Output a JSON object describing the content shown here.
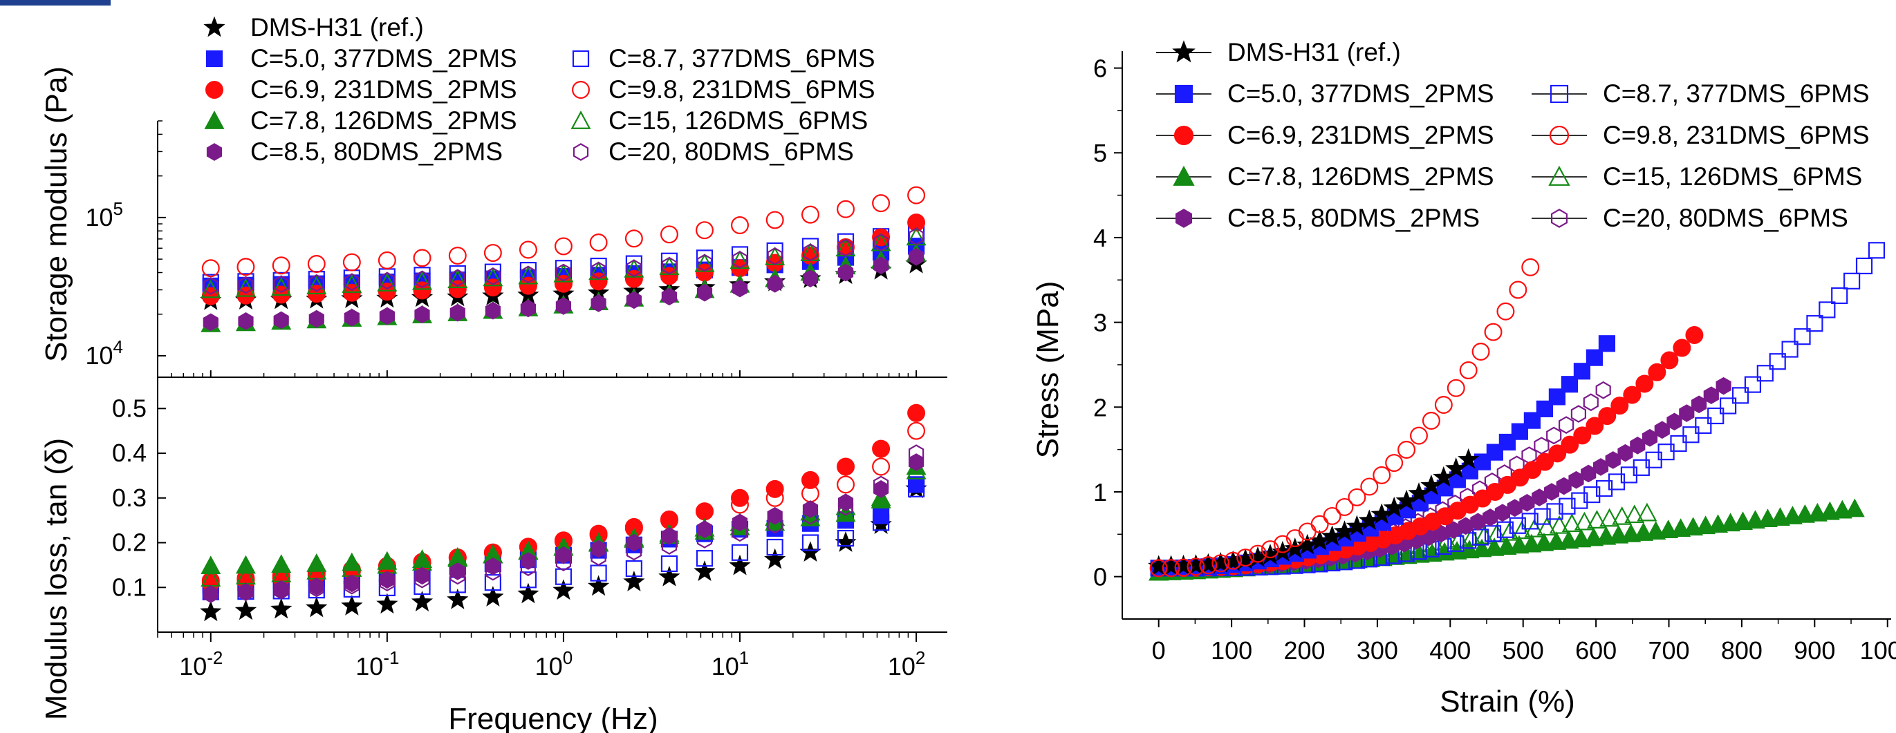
{
  "colors": {
    "black": "#000000",
    "blue": "#1a1aff",
    "red": "#ff0d0d",
    "green": "#138a13",
    "purple": "#7b1a8a",
    "header_accent": "#1f3f8f"
  },
  "chart_data": [
    {
      "type": "scatter",
      "title": "",
      "panel": "storage-modulus",
      "xlabel": "Frequency (Hz)",
      "ylabel": "Storage modulus (Pa)",
      "x_scale": "log",
      "y_scale": "log",
      "xlim": [
        0.005,
        150
      ],
      "ylim": [
        7000,
        500000
      ],
      "y_ticks": [
        {
          "value": 10000,
          "base": "10",
          "exp": "4"
        },
        {
          "value": 100000,
          "base": "10",
          "exp": "5"
        }
      ],
      "legend_position": "top",
      "legend_layout": [
        [
          "DMS-H31"
        ],
        [
          "C5.0",
          "C8.7"
        ],
        [
          "C6.9",
          "C9.8"
        ],
        [
          "C7.8",
          "C15"
        ],
        [
          "C8.5",
          "C20"
        ]
      ],
      "x": [
        0.01,
        0.0158,
        0.0251,
        0.0398,
        0.0631,
        0.1,
        0.158,
        0.251,
        0.398,
        0.631,
        1,
        1.58,
        2.51,
        3.98,
        6.31,
        10,
        15.8,
        25.1,
        39.8,
        63.1,
        100
      ],
      "series": [
        {
          "key": "DMS-H31",
          "name": "DMS-H31 (ref.)",
          "color": "black",
          "marker": "star",
          "fill": true,
          "values": [
            25000,
            25200,
            25400,
            25600,
            25800,
            26000,
            26300,
            26600,
            27000,
            27400,
            27900,
            28400,
            29200,
            30000,
            31000,
            32500,
            34200,
            36000,
            38500,
            41500,
            46000
          ]
        },
        {
          "key": "C5.0",
          "name": "C=5.0, 377DMS_2PMS",
          "color": "blue",
          "marker": "square",
          "fill": true,
          "values": [
            32000,
            32400,
            32800,
            33200,
            33700,
            34200,
            34800,
            35400,
            36000,
            36700,
            37500,
            38300,
            39300,
            40500,
            41800,
            43500,
            45500,
            48000,
            51500,
            56000,
            62000
          ]
        },
        {
          "key": "C8.7",
          "name": "C=8.7, 377DMS_6PMS",
          "color": "blue",
          "marker": "square",
          "fill": false,
          "values": [
            34000,
            34500,
            35100,
            35800,
            36600,
            37400,
            38300,
            39300,
            40400,
            41600,
            43000,
            44600,
            46400,
            48500,
            51000,
            54000,
            57500,
            62000,
            67000,
            73000,
            80000
          ]
        },
        {
          "key": "C6.9",
          "name": "C=6.9, 231DMS_2PMS",
          "color": "red",
          "marker": "circle",
          "fill": true,
          "values": [
            27000,
            27300,
            27700,
            28100,
            28600,
            29100,
            29700,
            30400,
            31200,
            32100,
            33200,
            34500,
            36000,
            37800,
            40000,
            43000,
            47000,
            53000,
            61000,
            72000,
            92000
          ]
        },
        {
          "key": "C9.8",
          "name": "C=9.8, 231DMS_6PMS",
          "color": "red",
          "marker": "circle",
          "fill": false,
          "values": [
            43000,
            44000,
            45000,
            46200,
            47500,
            49000,
            51000,
            53000,
            55500,
            58500,
            62000,
            66000,
            70500,
            75500,
            81000,
            88000,
            96000,
            105000,
            115000,
            127000,
            145000
          ]
        },
        {
          "key": "C7.8",
          "name": "C=7.8, 126DMS_2PMS",
          "color": "green",
          "marker": "triangle",
          "fill": true,
          "values": [
            17000,
            17300,
            17700,
            18100,
            18600,
            19100,
            19700,
            20400,
            21200,
            22100,
            23200,
            24500,
            26000,
            27800,
            30000,
            32800,
            36000,
            40000,
            44500,
            49000,
            55000
          ]
        },
        {
          "key": "C15",
          "name": "C=15, 126DMS_6PMS",
          "color": "green",
          "marker": "triangle",
          "fill": false,
          "values": [
            30000,
            30600,
            31200,
            31900,
            32700,
            33500,
            34400,
            35400,
            36500,
            37700,
            39000,
            40500,
            42200,
            44100,
            46300,
            48800,
            51800,
            55500,
            60000,
            65500,
            72000
          ]
        },
        {
          "key": "C8.5",
          "name": "C=8.5, 80DMS_2PMS",
          "color": "purple",
          "marker": "hexagon",
          "fill": true,
          "values": [
            17500,
            17800,
            18100,
            18500,
            18900,
            19400,
            19900,
            20500,
            21200,
            22000,
            22900,
            24000,
            25300,
            26800,
            28600,
            30700,
            33200,
            36200,
            40000,
            45000,
            52000
          ]
        },
        {
          "key": "C20",
          "name": "C=20, 80DMS_6PMS",
          "color": "purple",
          "marker": "hexagon",
          "fill": false,
          "values": [
            32000,
            32500,
            33000,
            33600,
            34200,
            34900,
            35700,
            36600,
            37600,
            38700,
            40000,
            41400,
            43000,
            44800,
            47000,
            49500,
            52500,
            56000,
            60500,
            66000,
            73000
          ]
        }
      ]
    },
    {
      "type": "scatter",
      "title": "",
      "panel": "loss-modulus",
      "xlabel": "Frequency (Hz)",
      "ylabel": "Modulus loss, tan (δ)",
      "x_scale": "log",
      "y_scale": "linear",
      "xlim": [
        0.005,
        150
      ],
      "ylim": [
        0,
        0.57
      ],
      "y_ticks": [
        "0.1",
        "0.2",
        "0.3",
        "0.4",
        "0.5"
      ],
      "x_ticks": [
        {
          "value": 0.01,
          "base": "10",
          "exp": "-2"
        },
        {
          "value": 0.1,
          "base": "10",
          "exp": "-1"
        },
        {
          "value": 1,
          "base": "10",
          "exp": "0"
        },
        {
          "value": 10,
          "base": "10",
          "exp": "1"
        },
        {
          "value": 100,
          "base": "10",
          "exp": "2"
        }
      ],
      "x": [
        0.01,
        0.0158,
        0.0251,
        0.0398,
        0.0631,
        0.1,
        0.158,
        0.251,
        0.398,
        0.631,
        1,
        1.58,
        2.51,
        3.98,
        6.31,
        10,
        15.8,
        25.1,
        39.8,
        63.1,
        100
      ],
      "series": [
        {
          "key": "DMS-H31",
          "color": "black",
          "marker": "star",
          "fill": true,
          "values": [
            0.045,
            0.048,
            0.051,
            0.054,
            0.058,
            0.062,
            0.067,
            0.072,
            0.078,
            0.085,
            0.093,
            0.102,
            0.112,
            0.123,
            0.135,
            0.148,
            0.162,
            0.178,
            0.2,
            0.24,
            0.32
          ]
        },
        {
          "key": "C5.0",
          "color": "blue",
          "marker": "square",
          "fill": true,
          "values": [
            0.105,
            0.11,
            0.115,
            0.12,
            0.126,
            0.132,
            0.138,
            0.145,
            0.153,
            0.162,
            0.172,
            0.183,
            0.195,
            0.208,
            0.22,
            0.23,
            0.232,
            0.243,
            0.25,
            0.26,
            0.33
          ]
        },
        {
          "key": "C8.7",
          "color": "blue",
          "marker": "square",
          "fill": false,
          "values": [
            0.09,
            0.091,
            0.092,
            0.094,
            0.096,
            0.099,
            0.102,
            0.106,
            0.111,
            0.117,
            0.124,
            0.132,
            0.142,
            0.153,
            0.165,
            0.178,
            0.19,
            0.2,
            0.21,
            0.245,
            0.32
          ]
        },
        {
          "key": "C6.9",
          "color": "red",
          "marker": "circle",
          "fill": true,
          "values": [
            0.115,
            0.12,
            0.126,
            0.133,
            0.14,
            0.148,
            0.157,
            0.167,
            0.178,
            0.19,
            0.203,
            0.217,
            0.232,
            0.25,
            0.27,
            0.3,
            0.32,
            0.34,
            0.37,
            0.41,
            0.49
          ]
        },
        {
          "key": "C9.8",
          "color": "red",
          "marker": "circle",
          "fill": false,
          "values": [
            0.11,
            0.115,
            0.121,
            0.128,
            0.136,
            0.145,
            0.155,
            0.166,
            0.178,
            0.191,
            0.205,
            0.22,
            0.235,
            0.252,
            0.27,
            0.285,
            0.3,
            0.31,
            0.33,
            0.37,
            0.45
          ]
        },
        {
          "key": "C7.8",
          "color": "green",
          "marker": "triangle",
          "fill": true,
          "values": [
            0.148,
            0.149,
            0.151,
            0.153,
            0.155,
            0.158,
            0.162,
            0.167,
            0.173,
            0.18,
            0.189,
            0.198,
            0.207,
            0.216,
            0.225,
            0.235,
            0.245,
            0.255,
            0.265,
            0.295,
            0.37
          ]
        },
        {
          "key": "C15",
          "color": "green",
          "marker": "triangle",
          "fill": false,
          "values": [
            0.12,
            0.125,
            0.13,
            0.136,
            0.142,
            0.149,
            0.156,
            0.164,
            0.172,
            0.181,
            0.19,
            0.2,
            0.21,
            0.22,
            0.232,
            0.244,
            0.256,
            0.268,
            0.28,
            0.3,
            0.36
          ]
        },
        {
          "key": "C8.5",
          "color": "purple",
          "marker": "hexagon",
          "fill": true,
          "values": [
            0.085,
            0.09,
            0.096,
            0.102,
            0.109,
            0.117,
            0.126,
            0.136,
            0.147,
            0.159,
            0.172,
            0.186,
            0.2,
            0.215,
            0.23,
            0.245,
            0.26,
            0.275,
            0.29,
            0.32,
            0.38
          ]
        },
        {
          "key": "C20",
          "color": "purple",
          "marker": "hexagon",
          "fill": false,
          "values": [
            0.085,
            0.089,
            0.093,
            0.098,
            0.104,
            0.111,
            0.118,
            0.126,
            0.135,
            0.145,
            0.156,
            0.168,
            0.18,
            0.193,
            0.207,
            0.222,
            0.24,
            0.26,
            0.28,
            0.33,
            0.4
          ]
        }
      ]
    },
    {
      "type": "line",
      "title": "",
      "panel": "stress-strain",
      "xlabel": "Strain (%)",
      "ylabel": "Stress (MPa)",
      "xlim": [
        -50,
        1005
      ],
      "ylim": [
        -0.5,
        6.2
      ],
      "x_ticks": [
        "0",
        "100",
        "200",
        "300",
        "400",
        "500",
        "600",
        "700",
        "800",
        "900",
        "1000"
      ],
      "y_ticks": [
        "0",
        "1",
        "2",
        "3",
        "4",
        "5",
        "6"
      ],
      "legend_position": "top-left",
      "legend_layout": [
        [
          "DMS-H31"
        ],
        [
          "C5.0",
          "C8.7"
        ],
        [
          "C6.9",
          "C9.8"
        ],
        [
          "C7.8",
          "C15"
        ],
        [
          "C8.5",
          "C20"
        ]
      ],
      "series": [
        {
          "key": "DMS-H31",
          "name": "DMS-H31 (ref.)",
          "color": "black",
          "marker": "star",
          "fill": true,
          "curve": {
            "x_max": 425,
            "y_max": 1.38,
            "y0": 0.12,
            "exponent": 2.2
          }
        },
        {
          "key": "C5.0",
          "name": "C=5.0, 377DMS_2PMS",
          "color": "blue",
          "marker": "square",
          "fill": true,
          "curve": {
            "x_max": 615,
            "y_max": 2.75,
            "y0": 0.1,
            "exponent": 2.3
          }
        },
        {
          "key": "C8.7",
          "name": "C=8.7, 377DMS_6PMS",
          "color": "blue",
          "marker": "square",
          "fill": false,
          "curve": {
            "x_max": 985,
            "y_max": 3.85,
            "y0": 0.1,
            "exponent": 2.9
          }
        },
        {
          "key": "C6.9",
          "name": "C=6.9, 231DMS_2PMS",
          "color": "red",
          "marker": "circle",
          "fill": true,
          "curve": {
            "x_max": 735,
            "y_max": 2.85,
            "y0": 0.1,
            "exponent": 2.4
          }
        },
        {
          "key": "C9.8",
          "name": "C=9.8, 231DMS_6PMS",
          "color": "red",
          "marker": "circle",
          "fill": false,
          "curve": {
            "x_max": 510,
            "y_max": 3.65,
            "y0": 0.1,
            "exponent": 2.3
          }
        },
        {
          "key": "C7.8",
          "name": "C=7.8, 126DMS_2PMS",
          "color": "green",
          "marker": "triangle",
          "fill": true,
          "curve": {
            "x_max": 955,
            "y_max": 0.8,
            "y0": 0.05,
            "exponent": 1.3
          }
        },
        {
          "key": "C15",
          "name": "C=15, 126DMS_6PMS",
          "color": "green",
          "marker": "triangle",
          "fill": false,
          "curve": {
            "x_max": 670,
            "y_max": 0.75,
            "y0": 0.05,
            "exponent": 1.2
          }
        },
        {
          "key": "C8.5",
          "name": "C=8.5, 80DMS_2PMS",
          "color": "purple",
          "marker": "hexagon",
          "fill": true,
          "curve": {
            "x_max": 775,
            "y_max": 2.25,
            "y0": 0.1,
            "exponent": 2.4
          }
        },
        {
          "key": "C20",
          "name": "C=20, 80DMS_6PMS",
          "color": "purple",
          "marker": "hexagon",
          "fill": false,
          "curve": {
            "x_max": 610,
            "y_max": 2.2,
            "y0": 0.1,
            "exponent": 2.5
          }
        }
      ]
    }
  ]
}
